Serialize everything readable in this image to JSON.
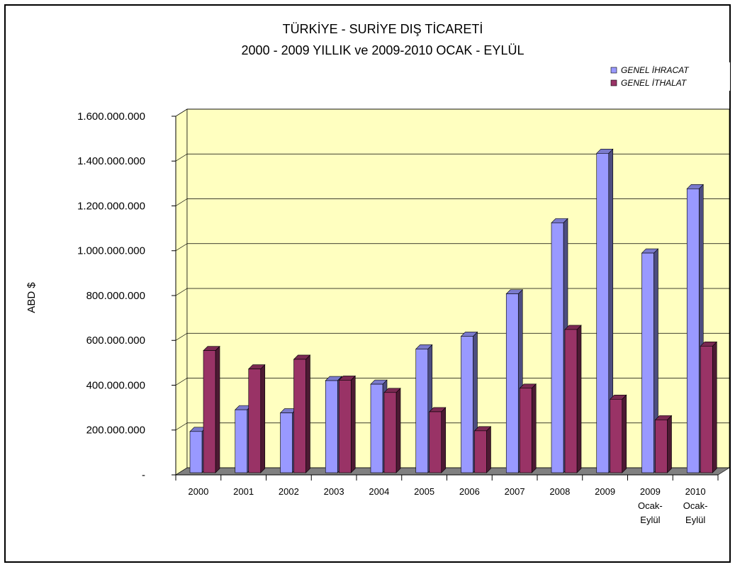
{
  "chart_data": {
    "type": "bar3d",
    "title": "TÜRKİYE - SURİYE DIŞ TİCARETİ",
    "subtitle": "2000 - 2009 YILLIK ve 2009-2010 OCAK - EYLÜL",
    "y_label": "ABD $",
    "categories": [
      "2000",
      "2001",
      "2002",
      "2003",
      "2004",
      "2005",
      "2006",
      "2007",
      "2008",
      "2009",
      "2009 Ocak-Eylül",
      "2010 Ocak-Eylül"
    ],
    "series": [
      {
        "name": "GENEL İHRACAT",
        "color": "#9999ff",
        "values": [
          184000000,
          281000000,
          267000000,
          411000000,
          395000000,
          552000000,
          609000000,
          798000000,
          1115000000,
          1425000000,
          980000000,
          1267000000
        ]
      },
      {
        "name": "GENEL İTHALAT",
        "color": "#993366",
        "values": [
          545000000,
          463000000,
          506000000,
          413000000,
          358000000,
          272000000,
          187000000,
          377000000,
          639000000,
          328000000,
          236000000,
          565000000
        ]
      }
    ],
    "ylim": [
      0,
      1600000000
    ],
    "yticks": [
      {
        "value": 0,
        "label": "-"
      },
      {
        "value": 200000000,
        "label": "200.000.000"
      },
      {
        "value": 400000000,
        "label": "400.000.000"
      },
      {
        "value": 600000000,
        "label": "600.000.000"
      },
      {
        "value": 800000000,
        "label": "800.000.000"
      },
      {
        "value": 1000000000,
        "label": "1.000.000.000"
      },
      {
        "value": 1200000000,
        "label": "1.200.000.000"
      },
      {
        "value": 1400000000,
        "label": "1.400.000.000"
      },
      {
        "value": 1600000000,
        "label": "1.600.000.000"
      }
    ],
    "grid": true,
    "legend": "top-right",
    "wall_color": "#ffffc0",
    "floor_color": "#808080"
  }
}
